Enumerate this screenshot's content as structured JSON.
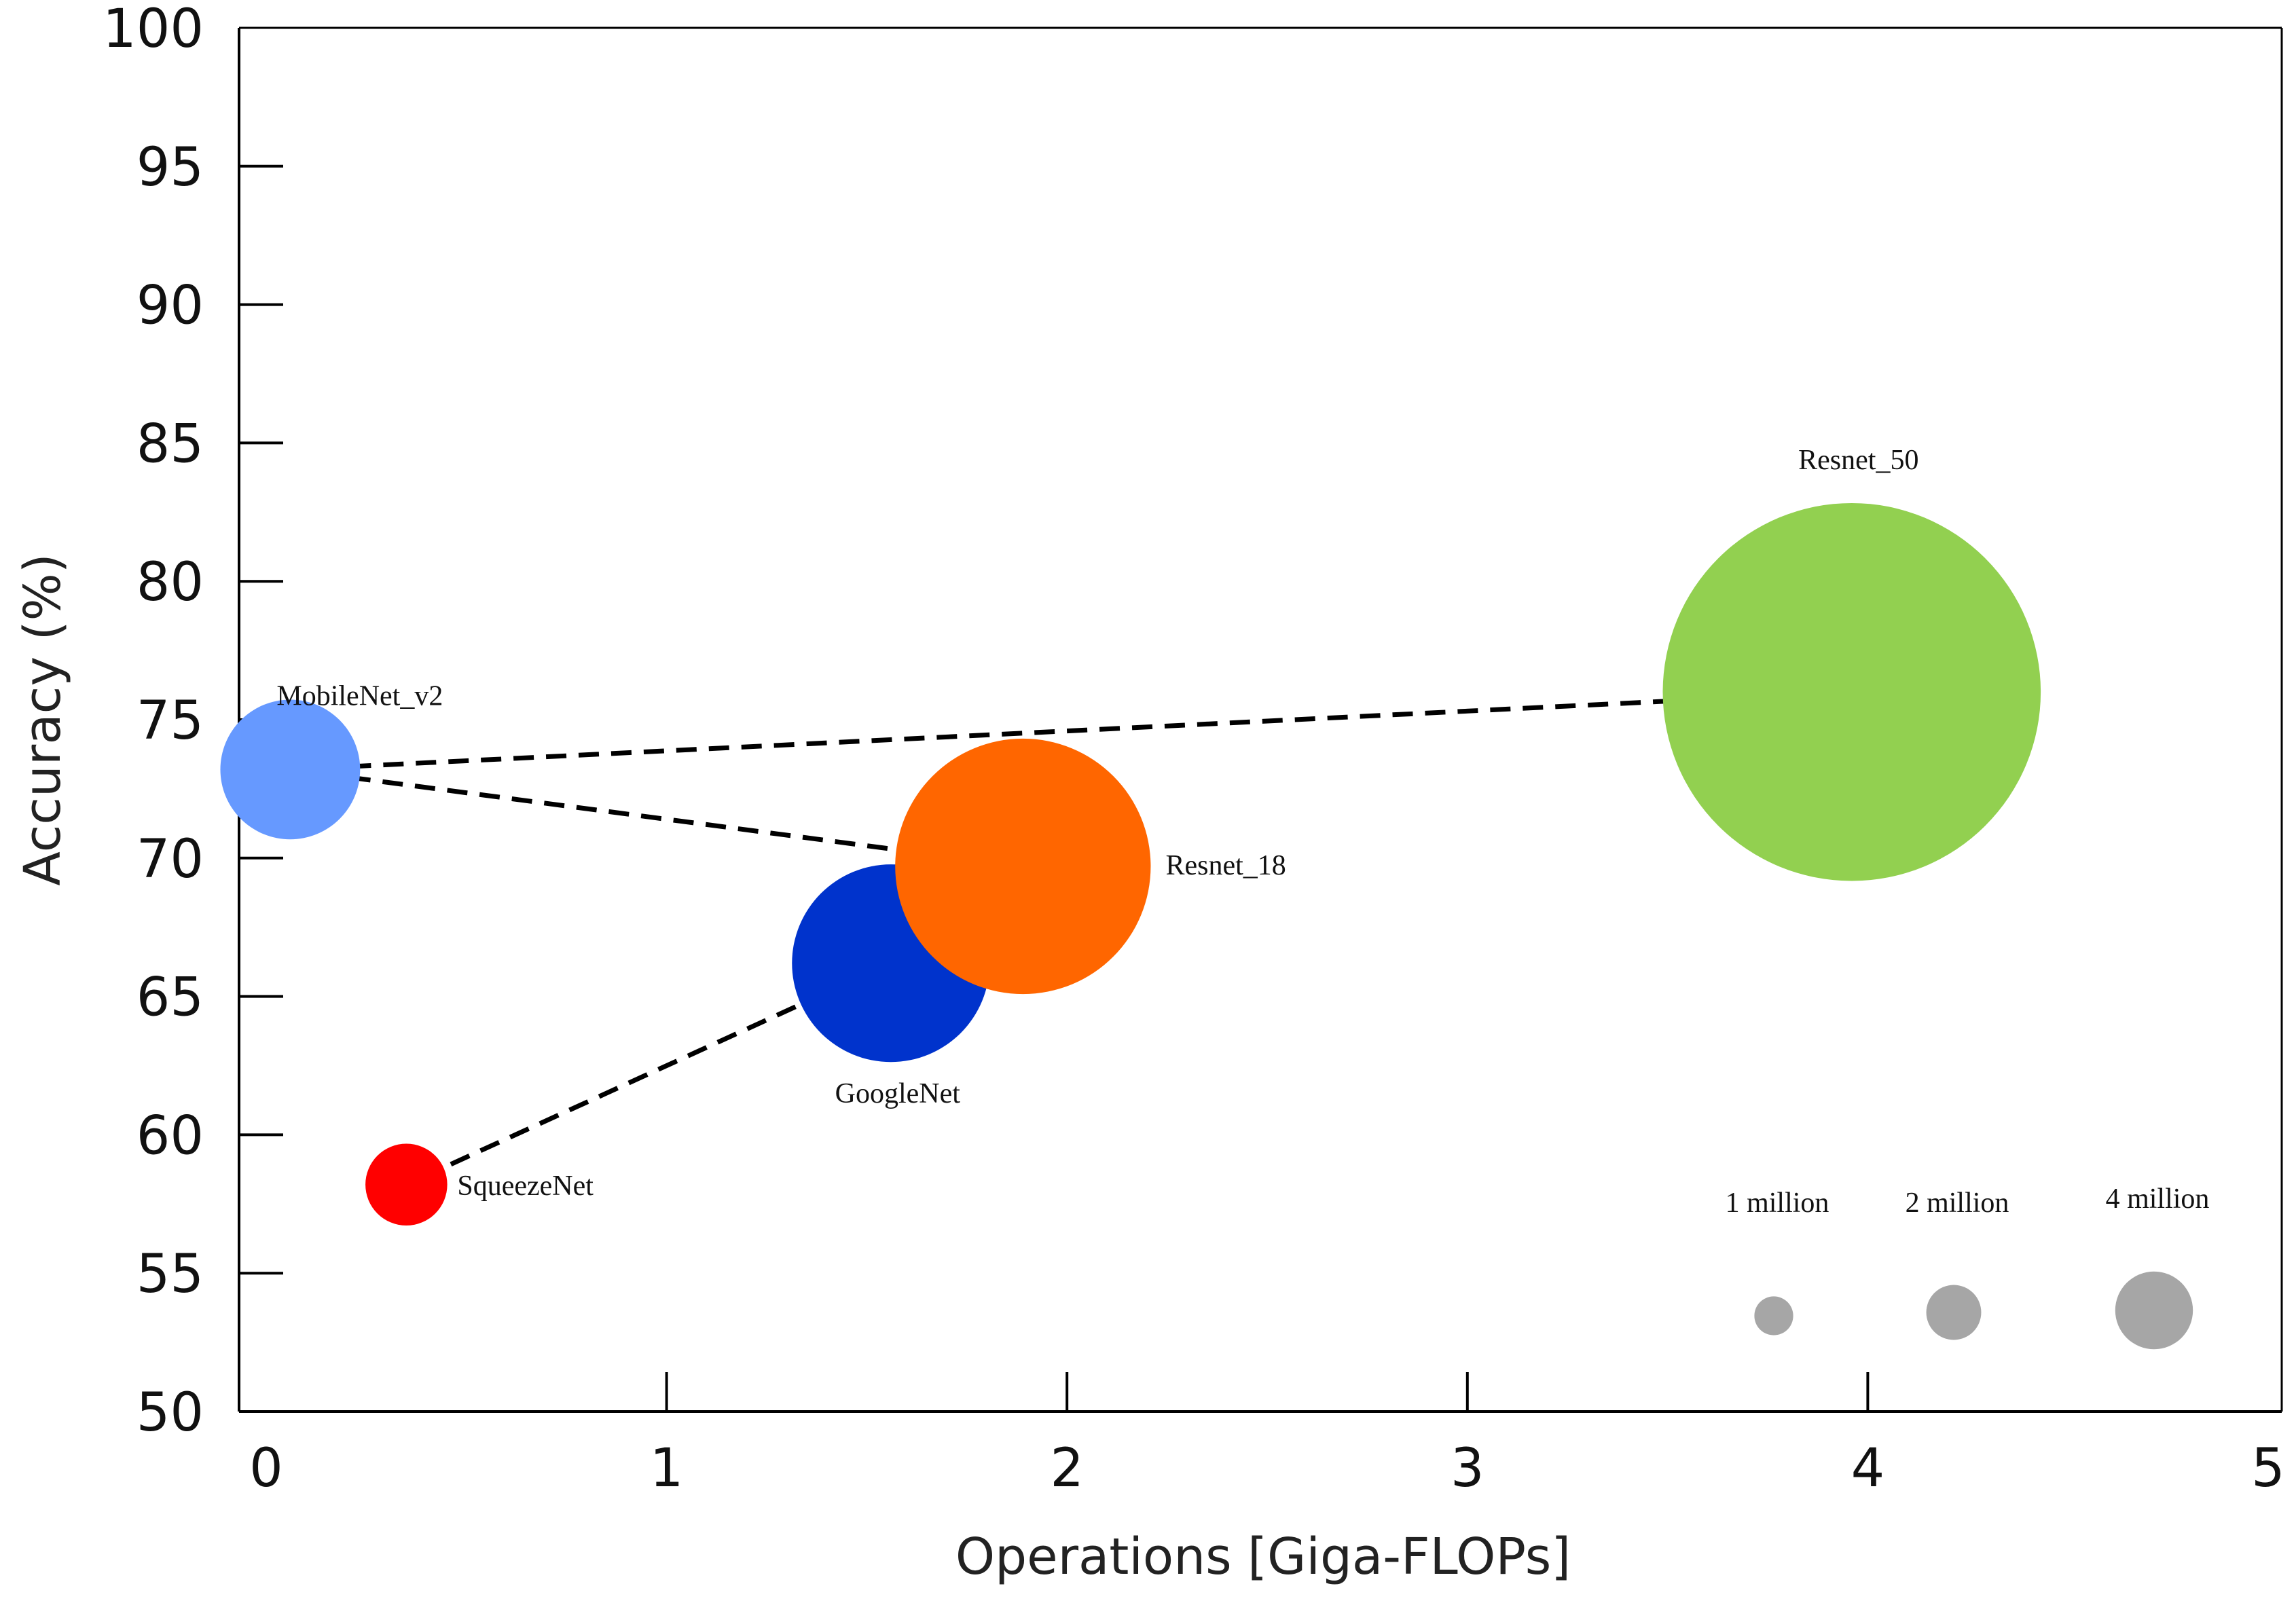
{
  "chart_data": {
    "type": "bubble",
    "title": "",
    "xlabel": "Operations [Giga-FLOPs]",
    "ylabel": "Accuracy (%)",
    "xlim": [
      0,
      5
    ],
    "ylim": [
      50,
      100
    ],
    "xticks": [
      "0",
      "1",
      "2",
      "3",
      "4",
      "5"
    ],
    "yticks": [
      "50",
      "55",
      "60",
      "65",
      "70",
      "75",
      "80",
      "85",
      "90",
      "95",
      "100"
    ],
    "series": [
      {
        "name": "MobileNet_v2",
        "x": 0.06,
        "y": 73.2,
        "params_million": 3.5,
        "color": "#6699ff"
      },
      {
        "name": "SqueezeNet",
        "x": 0.35,
        "y": 58.2,
        "params_million": 1.2,
        "color": "#ff0000"
      },
      {
        "name": "GoogleNet",
        "x": 1.56,
        "y": 66.2,
        "params_million": 7.0,
        "color": "#0033cc"
      },
      {
        "name": "Resnet_18",
        "x": 1.89,
        "y": 69.7,
        "params_million": 11.7,
        "color": "#ff6600"
      },
      {
        "name": "Resnet_50",
        "x": 3.96,
        "y": 76.0,
        "params_million": 25.6,
        "color": "#92d050"
      }
    ],
    "connections": [
      [
        "MobileNet_v2",
        "Resnet_50"
      ],
      [
        "MobileNet_v2",
        "Resnet_18"
      ],
      [
        "SqueezeNet",
        "GoogleNet"
      ],
      [
        "GoogleNet",
        "Resnet_18"
      ]
    ],
    "size_legend": [
      {
        "label": "1 million",
        "params_million": 1
      },
      {
        "label": "2 million",
        "params_million": 2
      },
      {
        "label": "4 million",
        "params_million": 4
      }
    ],
    "legend_color": "#a6a6a6",
    "grid": false
  }
}
